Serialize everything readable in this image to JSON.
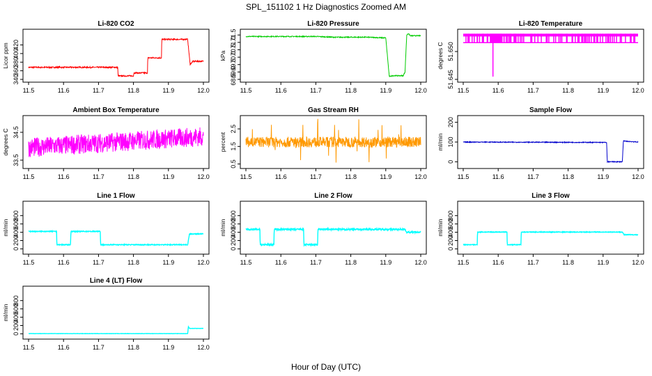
{
  "figure": {
    "title": "SPL_151102  1 Hz Diagnostics Zoomed AM",
    "xlabel": "Hour of Day (UTC)"
  },
  "chart_data": [
    {
      "type": "line",
      "title": "Li-820 CO2",
      "ylabel": "Licor ppm",
      "color": "#ff0000",
      "xlim": [
        11.5,
        12.0
      ],
      "ylim": [
        340,
        450
      ],
      "xticks": [
        "11.5",
        "11.6",
        "11.7",
        "11.8",
        "11.9",
        "12.0"
      ],
      "yticks": [
        "340",
        "360",
        "380",
        "400",
        "420"
      ],
      "series": [
        {
          "noise": 1.5,
          "x": [
            11.5,
            11.755,
            11.756,
            11.8,
            11.801,
            11.84,
            11.841,
            11.88,
            11.881,
            11.955,
            11.962,
            11.97,
            12.0
          ],
          "y": [
            368,
            368,
            348,
            348,
            355,
            355,
            390,
            390,
            433,
            433,
            375,
            382,
            382
          ]
        }
      ]
    },
    {
      "type": "line",
      "title": "Li-820 Pressure",
      "ylabel": "kPa",
      "color": "#00cc00",
      "xlim": [
        11.5,
        12.0
      ],
      "ylim": [
        68.5,
        71.7
      ],
      "xticks": [
        "11.5",
        "11.6",
        "11.7",
        "11.8",
        "11.9",
        "12.0"
      ],
      "yticks": [
        "68.5",
        "69.0",
        "69.5",
        "70.0",
        "70.5",
        "71.0",
        "71.5"
      ],
      "series": [
        {
          "noise": 0.03,
          "x": [
            11.5,
            11.7,
            11.75,
            11.85,
            11.9,
            11.91,
            11.92,
            11.95,
            11.955,
            11.96,
            11.965,
            11.97,
            12.0
          ],
          "y": [
            71.4,
            71.4,
            71.35,
            71.35,
            71.3,
            68.7,
            68.75,
            68.75,
            69.0,
            71.5,
            71.6,
            71.45,
            71.45
          ]
        }
      ]
    },
    {
      "type": "line",
      "title": "Li-820 Temperature",
      "ylabel": "degrees C",
      "color": "#ff00ff",
      "xlim": [
        11.5,
        12.0
      ],
      "ylim": [
        51.645,
        51.6535
      ],
      "xticks": [
        "11.5",
        "11.6",
        "11.7",
        "11.8",
        "11.9",
        "12.0"
      ],
      "yticks": [
        "51.645",
        "51.650"
      ],
      "series": [
        {
          "x": [
            11.5,
            12.0
          ],
          "y": [
            51.6516,
            51.6516
          ]
        }
      ]
    },
    {
      "type": "line",
      "title": "Ambient Box Temperature",
      "ylabel": "degrees C",
      "color": "#ff00ff",
      "xlim": [
        11.5,
        12.0
      ],
      "ylim": [
        33.3,
        35.0
      ],
      "xticks": [
        "11.5",
        "11.6",
        "11.7",
        "11.8",
        "11.9",
        "12.0"
      ],
      "yticks": [
        "33.5",
        "34.5"
      ],
      "series": [
        {
          "noise": 0.35,
          "x": [
            11.5,
            12.0
          ],
          "y": [
            33.95,
            34.35
          ]
        }
      ]
    },
    {
      "type": "line",
      "title": "Gas Stream RH",
      "ylabel": "percent",
      "color": "#ff9900",
      "xlim": [
        11.5,
        12.0
      ],
      "ylim": [
        0.4,
        3.1
      ],
      "xticks": [
        "11.5",
        "11.6",
        "11.7",
        "11.8",
        "11.9",
        "12.0"
      ],
      "yticks": [
        "0.5",
        "1.5",
        "2.5"
      ],
      "series": [
        {
          "noise": 0.3,
          "x": [
            11.5,
            12.0
          ],
          "y": [
            1.75,
            1.75
          ]
        }
      ]
    },
    {
      "type": "line",
      "title": "Sample Flow",
      "ylabel": "ml/min",
      "color": "#0000cc",
      "xlim": [
        11.5,
        12.0
      ],
      "ylim": [
        -20,
        220
      ],
      "xticks": [
        "11.5",
        "11.6",
        "11.7",
        "11.8",
        "11.9",
        "12.0"
      ],
      "yticks": [
        "0",
        "100",
        "200"
      ],
      "series": [
        {
          "noise": 2,
          "x": [
            11.5,
            11.91,
            11.912,
            11.955,
            11.958,
            12.0
          ],
          "y": [
            100,
            98,
            0,
            0,
            105,
            100
          ]
        }
      ]
    },
    {
      "type": "line",
      "title": "Line 1 Flow",
      "ylabel": "ml/min",
      "color": "#00ffff",
      "xlim": [
        11.5,
        12.0
      ],
      "ylim": [
        -60,
        1080
      ],
      "xticks": [
        "11.5",
        "11.6",
        "11.7",
        "11.8",
        "11.9",
        "12.0"
      ],
      "yticks": [
        "0",
        "200",
        "400",
        "600",
        "800"
      ],
      "series": [
        {
          "noise": 10,
          "x": [
            11.5,
            11.58,
            11.581,
            11.62,
            11.621,
            11.705,
            11.706,
            11.955,
            11.96,
            12.0
          ],
          "y": [
            420,
            420,
            100,
            100,
            420,
            420,
            100,
            100,
            360,
            360
          ]
        }
      ]
    },
    {
      "type": "line",
      "title": "Line 2 Flow",
      "ylabel": "ml/min",
      "color": "#00ffff",
      "xlim": [
        11.5,
        12.0
      ],
      "ylim": [
        -60,
        1080
      ],
      "xticks": [
        "11.5",
        "11.6",
        "11.7",
        "11.8",
        "11.9",
        "12.0"
      ],
      "yticks": [
        "0",
        "200",
        "400",
        "600",
        "800"
      ],
      "series": [
        {
          "noise": 18,
          "x": [
            11.5,
            11.54,
            11.541,
            11.58,
            11.581,
            11.665,
            11.666,
            11.705,
            11.706,
            11.955,
            11.96,
            12.0
          ],
          "y": [
            470,
            470,
            100,
            100,
            470,
            470,
            100,
            100,
            470,
            470,
            400,
            400
          ]
        }
      ]
    },
    {
      "type": "line",
      "title": "Line 3 Flow",
      "ylabel": "ml/min",
      "color": "#00ffff",
      "xlim": [
        11.5,
        12.0
      ],
      "ylim": [
        -60,
        1080
      ],
      "xticks": [
        "11.5",
        "11.6",
        "11.7",
        "11.8",
        "11.9",
        "12.0"
      ],
      "yticks": [
        "0",
        "200",
        "400",
        "600",
        "800"
      ],
      "series": [
        {
          "noise": 8,
          "x": [
            11.5,
            11.54,
            11.541,
            11.625,
            11.626,
            11.665,
            11.666,
            11.955,
            11.96,
            12.0
          ],
          "y": [
            100,
            100,
            405,
            405,
            100,
            100,
            405,
            405,
            340,
            340
          ]
        }
      ]
    },
    {
      "type": "line",
      "title": "Line 4 (LT) Flow",
      "ylabel": "ml/min",
      "color": "#00ffff",
      "xlim": [
        11.5,
        12.0
      ],
      "ylim": [
        -60,
        1080
      ],
      "xticks": [
        "11.5",
        "11.6",
        "11.7",
        "11.8",
        "11.9",
        "12.0"
      ],
      "yticks": [
        "0",
        "200",
        "400",
        "600",
        "800"
      ],
      "series": [
        {
          "noise": 3,
          "x": [
            11.5,
            11.955,
            11.957,
            11.96,
            12.0
          ],
          "y": [
            5,
            5,
            175,
            130,
            130
          ]
        }
      ]
    }
  ]
}
